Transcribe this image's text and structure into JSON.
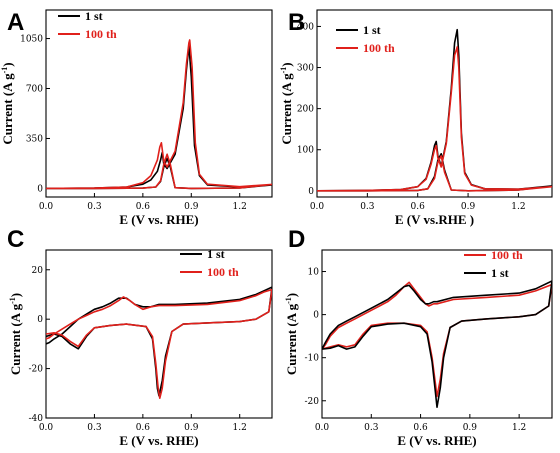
{
  "chart_data": [
    {
      "panel": "A",
      "type": "line",
      "xlabel": "E (V vs. RHE)",
      "ylabel": "Current (A g-1)",
      "xlim": [
        0.0,
        1.4
      ],
      "ylim": [
        -60,
        1250
      ],
      "xticks": [
        "0.0",
        "0.3",
        "0.6",
        "0.9",
        "1.2"
      ],
      "yticks": [
        "0",
        "350",
        "700",
        "1050"
      ],
      "legend": "top-left",
      "series": [
        {
          "name": "1 st",
          "color": "#000000",
          "x": [
            0.0,
            0.3,
            0.5,
            0.6,
            0.65,
            0.69,
            0.71,
            0.72,
            0.73,
            0.75,
            0.8,
            0.85,
            0.87,
            0.885,
            0.9,
            0.92,
            0.95,
            1.0,
            1.2,
            1.4,
            1.2,
            0.9,
            0.8,
            0.77,
            0.75,
            0.73,
            0.71,
            0.68,
            0.6,
            0.3,
            0.0
          ],
          "y": [
            0,
            2,
            10,
            30,
            60,
            120,
            200,
            250,
            170,
            140,
            240,
            560,
            830,
            1000,
            780,
            300,
            90,
            25,
            10,
            25,
            3,
            0,
            5,
            150,
            210,
            150,
            50,
            10,
            2,
            0,
            0
          ]
        },
        {
          "name": "100 th",
          "color": "#e0201b",
          "x": [
            0.0,
            0.3,
            0.5,
            0.6,
            0.65,
            0.69,
            0.705,
            0.715,
            0.73,
            0.75,
            0.8,
            0.85,
            0.87,
            0.885,
            0.89,
            0.905,
            0.925,
            0.95,
            1.0,
            1.2,
            1.4,
            1.2,
            0.9,
            0.8,
            0.77,
            0.75,
            0.73,
            0.71,
            0.68,
            0.6,
            0.3,
            0.0
          ],
          "y": [
            0,
            2,
            10,
            40,
            90,
            200,
            290,
            320,
            190,
            150,
            260,
            600,
            870,
            1020,
            1040,
            850,
            320,
            100,
            30,
            12,
            28,
            3,
            0,
            5,
            170,
            240,
            170,
            55,
            10,
            2,
            0,
            0
          ]
        }
      ]
    },
    {
      "panel": "B",
      "type": "line",
      "xlabel": "E (V vs.RHE )",
      "ylabel": "Current (A g-1)",
      "xlim": [
        0.0,
        1.4
      ],
      "ylim": [
        -15,
        440
      ],
      "xticks": [
        "0.0",
        "0.3",
        "0.6",
        "0.9",
        "1.2"
      ],
      "yticks": [
        "0",
        "100",
        "200",
        "300",
        "400"
      ],
      "legend": "top-right",
      "series": [
        {
          "name": "1 st",
          "color": "#000000",
          "x": [
            0.0,
            0.3,
            0.5,
            0.6,
            0.65,
            0.68,
            0.7,
            0.71,
            0.72,
            0.74,
            0.77,
            0.8,
            0.82,
            0.835,
            0.845,
            0.86,
            0.88,
            0.92,
            1.0,
            1.2,
            1.4,
            1.2,
            0.9,
            0.8,
            0.76,
            0.74,
            0.72,
            0.7,
            0.66,
            0.6,
            0.3,
            0.0
          ],
          "y": [
            0,
            1,
            3,
            10,
            30,
            70,
            110,
            120,
            85,
            60,
            120,
            250,
            360,
            392,
            330,
            140,
            45,
            15,
            5,
            4,
            12,
            2,
            0,
            2,
            50,
            90,
            75,
            35,
            5,
            1,
            0,
            0
          ]
        },
        {
          "name": "100 th",
          "color": "#e0201b",
          "x": [
            0.0,
            0.3,
            0.5,
            0.6,
            0.65,
            0.68,
            0.7,
            0.71,
            0.72,
            0.74,
            0.77,
            0.8,
            0.82,
            0.835,
            0.845,
            0.86,
            0.88,
            0.92,
            1.0,
            1.2,
            1.4,
            1.2,
            0.9,
            0.8,
            0.76,
            0.74,
            0.72,
            0.7,
            0.66,
            0.6,
            0.3,
            0.0
          ],
          "y": [
            0,
            1,
            3,
            10,
            28,
            65,
            100,
            110,
            80,
            58,
            115,
            240,
            330,
            350,
            300,
            130,
            42,
            14,
            5,
            4,
            10,
            2,
            0,
            2,
            45,
            85,
            70,
            30,
            5,
            1,
            0,
            0
          ]
        }
      ]
    },
    {
      "panel": "C",
      "type": "line",
      "xlabel": "E (V vs. RHE)",
      "ylabel": "Current (A g-1)",
      "xlim": [
        0.0,
        1.4
      ],
      "ylim": [
        -40,
        28
      ],
      "xticks": [
        "0.0",
        "0.3",
        "0.6",
        "0.9",
        "1.2"
      ],
      "yticks": [
        "20",
        "0",
        "-20",
        "-40"
      ],
      "legend": "top-right",
      "series": [
        {
          "name": "1 st",
          "color": "#000000",
          "x": [
            0.0,
            0.02,
            0.05,
            0.1,
            0.15,
            0.2,
            0.25,
            0.3,
            0.35,
            0.4,
            0.45,
            0.5,
            0.55,
            0.6,
            0.65,
            0.7,
            0.8,
            1.0,
            1.2,
            1.3,
            1.35,
            1.4,
            1.38,
            1.3,
            1.2,
            1.0,
            0.85,
            0.78,
            0.74,
            0.72,
            0.7,
            0.69,
            0.68,
            0.66,
            0.62,
            0.5,
            0.4,
            0.3,
            0.25,
            0.2,
            0.15,
            0.1,
            0.05,
            0.0
          ],
          "y": [
            -10,
            -9.5,
            -8,
            -6,
            -3,
            0,
            2,
            4,
            5,
            6.5,
            8.5,
            8.5,
            6,
            5,
            5,
            6,
            6,
            6.5,
            8,
            10,
            11.5,
            13,
            3,
            0,
            -1,
            -1.5,
            -2,
            -5,
            -15,
            -25,
            -31,
            -28,
            -20,
            -8,
            -3,
            -2,
            -2.5,
            -3.5,
            -7,
            -12,
            -10,
            -7,
            -6,
            -7
          ]
        },
        {
          "name": "100 th",
          "color": "#e0201b",
          "x": [
            0.0,
            0.02,
            0.05,
            0.1,
            0.15,
            0.2,
            0.25,
            0.3,
            0.35,
            0.4,
            0.45,
            0.48,
            0.52,
            0.55,
            0.6,
            0.65,
            0.7,
            0.8,
            1.0,
            1.2,
            1.3,
            1.35,
            1.4,
            1.38,
            1.3,
            1.2,
            1.0,
            0.85,
            0.78,
            0.74,
            0.72,
            0.705,
            0.695,
            0.68,
            0.66,
            0.62,
            0.5,
            0.4,
            0.3,
            0.25,
            0.2,
            0.15,
            0.1,
            0.05,
            0.0
          ],
          "y": [
            -8,
            -7.5,
            -6,
            -4,
            -2,
            0,
            1.5,
            3,
            4,
            5.5,
            7.5,
            9,
            7.5,
            6,
            4,
            5,
            5.5,
            5.5,
            6,
            7.5,
            9.5,
            11,
            12,
            3,
            0,
            -1,
            -1.5,
            -2,
            -5,
            -17,
            -28,
            -32,
            -28,
            -18,
            -7,
            -3,
            -2,
            -2.5,
            -3.5,
            -6.5,
            -11,
            -9,
            -6.5,
            -5.5,
            -6
          ]
        }
      ]
    },
    {
      "panel": "D",
      "type": "line",
      "xlabel": "E (V vs. RHE)",
      "ylabel": "Current (A g-1)",
      "xlim": [
        0.0,
        1.4
      ],
      "ylim": [
        -24,
        15
      ],
      "xticks": [
        "0.0",
        "0.3",
        "0.6",
        "0.9",
        "1.2"
      ],
      "yticks": [
        "10",
        "0",
        "-10",
        "-20"
      ],
      "legend": "top-right",
      "series": [
        {
          "name": "100 th",
          "color": "#e0201b",
          "x": [
            0.0,
            0.02,
            0.05,
            0.1,
            0.15,
            0.2,
            0.3,
            0.4,
            0.45,
            0.5,
            0.53,
            0.56,
            0.6,
            0.63,
            0.65,
            0.68,
            0.7,
            0.8,
            1.0,
            1.2,
            1.3,
            1.4,
            1.38,
            1.3,
            1.2,
            1.0,
            0.85,
            0.78,
            0.74,
            0.72,
            0.7,
            0.69,
            0.67,
            0.64,
            0.6,
            0.5,
            0.4,
            0.3,
            0.25,
            0.2,
            0.15,
            0.1,
            0.05,
            0.0
          ],
          "y": [
            -8,
            -7,
            -5,
            -3,
            -2,
            -1,
            1,
            3,
            4.5,
            6.5,
            7.5,
            6,
            4,
            2.5,
            2,
            2.5,
            2.5,
            3.5,
            4,
            4.5,
            5.5,
            7,
            2,
            0,
            -0.5,
            -1,
            -1.5,
            -3,
            -9,
            -15,
            -19,
            -16,
            -10,
            -4,
            -2.5,
            -2,
            -2,
            -2.5,
            -4.5,
            -7,
            -7.5,
            -7,
            -7.5,
            -8
          ]
        },
        {
          "name": "1 st",
          "color": "#000000",
          "x": [
            0.0,
            0.02,
            0.05,
            0.1,
            0.15,
            0.2,
            0.3,
            0.4,
            0.45,
            0.5,
            0.53,
            0.56,
            0.6,
            0.63,
            0.65,
            0.68,
            0.7,
            0.8,
            1.0,
            1.2,
            1.3,
            1.4,
            1.38,
            1.3,
            1.2,
            1.0,
            0.85,
            0.78,
            0.74,
            0.72,
            0.7,
            0.69,
            0.67,
            0.64,
            0.6,
            0.5,
            0.4,
            0.3,
            0.25,
            0.2,
            0.15,
            0.1,
            0.05,
            0.0
          ],
          "y": [
            -8,
            -6.5,
            -4.5,
            -2.5,
            -1.5,
            -0.5,
            1.5,
            3.5,
            5,
            6.5,
            6.8,
            5.5,
            3.5,
            2.5,
            2.5,
            3,
            3,
            4,
            4.5,
            5,
            6,
            7.8,
            2,
            0,
            -0.5,
            -1,
            -1.5,
            -3,
            -10,
            -17,
            -21.5,
            -18,
            -11,
            -4.5,
            -2.8,
            -2,
            -2.2,
            -2.8,
            -5,
            -7.5,
            -8,
            -7.2,
            -7.8,
            -8
          ]
        }
      ]
    }
  ]
}
